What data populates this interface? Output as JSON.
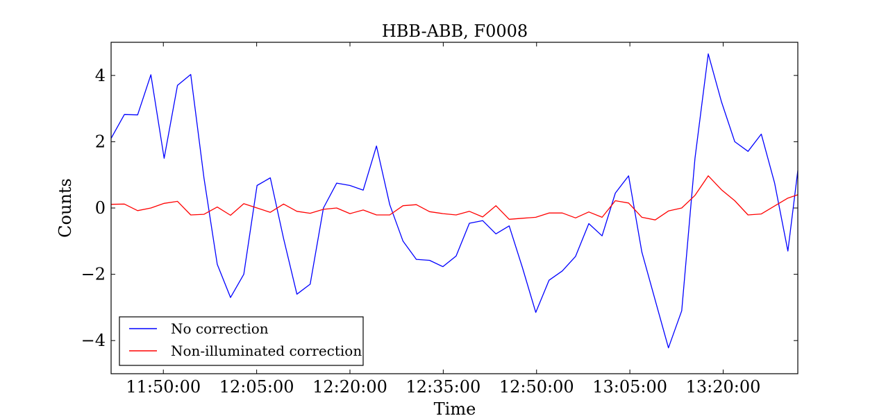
{
  "chart_data": {
    "type": "line",
    "title": "HBB-ABB, F0008",
    "xlabel": "Time",
    "ylabel": "Counts",
    "x_range": [
      "11:41:36",
      "13:32:00"
    ],
    "ylim": [
      -5,
      5
    ],
    "x_ticks": [
      "11:50:00",
      "12:05:00",
      "12:20:00",
      "12:35:00",
      "12:50:00",
      "13:05:00",
      "13:20:00"
    ],
    "y_ticks": [
      -4,
      -2,
      0,
      2,
      4
    ],
    "y_tick_labels": [
      "−4",
      "−2",
      "0",
      "2",
      "4"
    ],
    "grid": false,
    "legend_position": "lower-left",
    "x": [
      "11:41:36",
      "11:43:44",
      "11:45:52",
      "11:48:00",
      "11:50:08",
      "11:52:16",
      "11:54:24",
      "11:56:32",
      "11:58:40",
      "12:00:48",
      "12:02:56",
      "12:05:04",
      "12:07:12",
      "12:09:20",
      "12:11:28",
      "12:13:36",
      "12:15:44",
      "12:17:52",
      "12:20:00",
      "12:22:08",
      "12:24:16",
      "12:26:24",
      "12:28:32",
      "12:30:40",
      "12:32:48",
      "12:34:56",
      "12:37:04",
      "12:39:12",
      "12:41:20",
      "12:43:28",
      "12:45:36",
      "12:47:44",
      "12:49:52",
      "12:52:00",
      "12:54:08",
      "12:56:16",
      "12:58:24",
      "13:00:32",
      "13:02:40",
      "13:04:48",
      "13:06:56",
      "13:09:04",
      "13:11:12",
      "13:13:20",
      "13:15:28",
      "13:17:36",
      "13:19:44",
      "13:21:52",
      "13:24:00",
      "13:26:08",
      "13:28:16",
      "13:30:24",
      "13:32:00"
    ],
    "series": [
      {
        "name": "No correction",
        "color": "#0000ff",
        "values": [
          2.1,
          2.82,
          2.81,
          4.02,
          1.5,
          3.7,
          4.03,
          0.9,
          -1.7,
          -2.7,
          -2.0,
          0.68,
          0.91,
          -0.92,
          -2.6,
          -2.3,
          0.0,
          0.75,
          0.68,
          0.54,
          1.87,
          0.1,
          -1.0,
          -1.55,
          -1.58,
          -1.77,
          -1.45,
          -0.46,
          -0.38,
          -0.78,
          -0.54,
          -1.8,
          -3.15,
          -2.18,
          -1.9,
          -1.46,
          -0.47,
          -0.84,
          0.45,
          0.97,
          -1.33,
          -2.78,
          -4.22,
          -3.1,
          1.5,
          4.65,
          3.2,
          2.0,
          1.71,
          2.23,
          0.75,
          -1.3,
          1.13
        ]
      },
      {
        "name": "Non-illuminated correction",
        "color": "#ff0000",
        "values": [
          0.11,
          0.12,
          -0.08,
          0.0,
          0.14,
          0.2,
          -0.21,
          -0.19,
          0.03,
          -0.22,
          0.13,
          0.0,
          -0.13,
          0.12,
          -0.1,
          -0.16,
          -0.04,
          0.0,
          -0.17,
          -0.06,
          -0.21,
          -0.21,
          0.07,
          0.1,
          -0.11,
          -0.17,
          -0.21,
          -0.1,
          -0.27,
          0.07,
          -0.34,
          -0.31,
          -0.28,
          -0.15,
          -0.15,
          -0.3,
          -0.12,
          -0.28,
          0.22,
          0.15,
          -0.28,
          -0.36,
          -0.09,
          0.0,
          0.38,
          0.97,
          0.55,
          0.22,
          -0.21,
          -0.18,
          0.06,
          0.3,
          0.4
        ]
      }
    ]
  }
}
